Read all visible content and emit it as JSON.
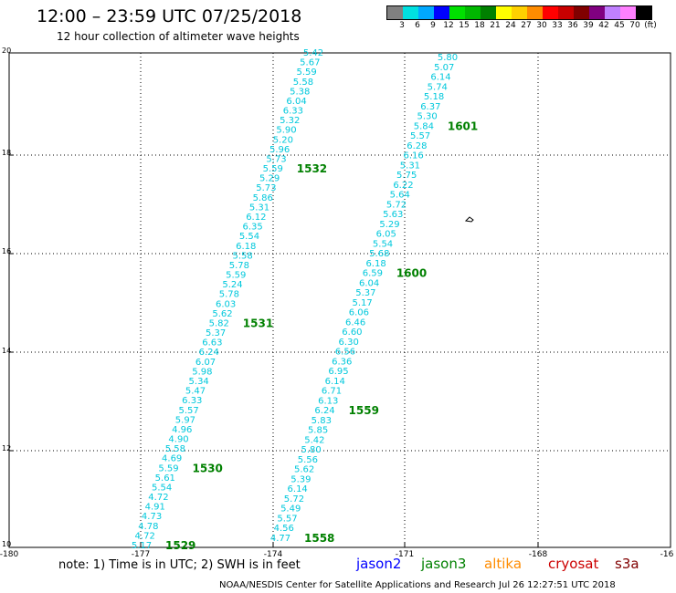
{
  "header": {
    "title": "12:00 – 23:59 UTC 07/25/2018",
    "subtitle": "12 hour collection of altimeter wave heights"
  },
  "colorbar": {
    "colors": [
      "#808080",
      "#00e0e0",
      "#00a8ff",
      "#0000ff",
      "#00e000",
      "#00b800",
      "#008000",
      "#ffff00",
      "#ffd000",
      "#ff8c00",
      "#ff0000",
      "#c80000",
      "#800000",
      "#800080",
      "#c080ff",
      "#ff80ff",
      "#000000"
    ],
    "labels": [
      "3",
      "6",
      "9",
      "12",
      "15",
      "18",
      "21",
      "24",
      "27",
      "30",
      "33",
      "36",
      "39",
      "42",
      "45",
      "70",
      "(ft)"
    ]
  },
  "map": {
    "lat_labels": [
      "20",
      "18",
      "16",
      "14",
      "12",
      "10"
    ],
    "lon_labels": [
      "-180",
      "-177",
      "-174",
      "-171",
      "-168",
      "-16"
    ],
    "colors": {
      "track_values": "#00c8dc",
      "time_labels": "#008000",
      "grid": "#000000"
    }
  },
  "chart_data": {
    "type": "scatter",
    "x_range": [
      -180,
      -165
    ],
    "y_range": [
      10,
      20
    ],
    "grid": true,
    "tracks": [
      {
        "values": [
          "5.42",
          "5.67",
          "5.59",
          "5.58",
          "5.38",
          "6.04",
          "6.33",
          "5.32",
          "5.90",
          "5.20",
          "5.96",
          "5.73",
          "5.59",
          "5.29",
          "5.73",
          "5.86",
          "5.31",
          "6.12",
          "6.35",
          "5.54",
          "6.18",
          "5.58",
          "5.78",
          "5.59",
          "5.24",
          "5.78",
          "6.03",
          "5.62",
          "5.82",
          "5.37",
          "6.63",
          "6.24",
          "6.07",
          "5.98",
          "5.34",
          "5.47",
          "6.33",
          "5.57",
          "5.97",
          "4.96",
          "4.90",
          "5.58",
          "4.69",
          "5.59",
          "5.61",
          "5.54",
          "4.72",
          "4.91",
          "4.73",
          "4.78",
          "4.72",
          "5.17"
        ],
        "time_labels": [
          {
            "text": "1532",
            "index": 12
          },
          {
            "text": "1531",
            "index": 28
          },
          {
            "text": "1530",
            "index": 43
          },
          {
            "text": "1529",
            "index": 51
          }
        ]
      },
      {
        "values": [
          "5.80",
          "5.07",
          "6.14",
          "5.74",
          "5.18",
          "6.37",
          "5.30",
          "5.84",
          "5.57",
          "6.28",
          "6.16",
          "5.31",
          "5.75",
          "6.22",
          "5.64",
          "5.72",
          "5.63",
          "5.29",
          "6.05",
          "5.54",
          "5.68",
          "6.18",
          "6.59",
          "6.04",
          "5.37",
          "5.17",
          "6.06",
          "6.46",
          "6.60",
          "6.30",
          "6.56",
          "6.36",
          "6.95",
          "6.14",
          "6.71",
          "6.13",
          "6.24",
          "5.83",
          "5.85",
          "5.42",
          "5.80",
          "5.56",
          "5.62",
          "5.39",
          "6.14",
          "5.72",
          "5.49",
          "5.57",
          "4.56",
          "4.77"
        ],
        "time_labels": [
          {
            "text": "1601",
            "index": 7
          },
          {
            "text": "1600",
            "index": 22
          },
          {
            "text": "1559",
            "index": 36
          },
          {
            "text": "1558",
            "index": 49
          }
        ]
      }
    ]
  },
  "footer": {
    "note": "note:  1) Time is in UTC;  2) SWH is in feet",
    "legend": [
      {
        "name": "jason2",
        "color": "#0000ff"
      },
      {
        "name": "jason3",
        "color": "#008000"
      },
      {
        "name": "altika",
        "color": "#ff8c00"
      },
      {
        "name": "cryosat",
        "color": "#cc0000"
      },
      {
        "name": "s3a",
        "color": "#800000"
      }
    ],
    "credit": "NOAA/NESDIS Center for Satellite Applications and Research    Jul 26 12:27:51 UTC 2018"
  }
}
